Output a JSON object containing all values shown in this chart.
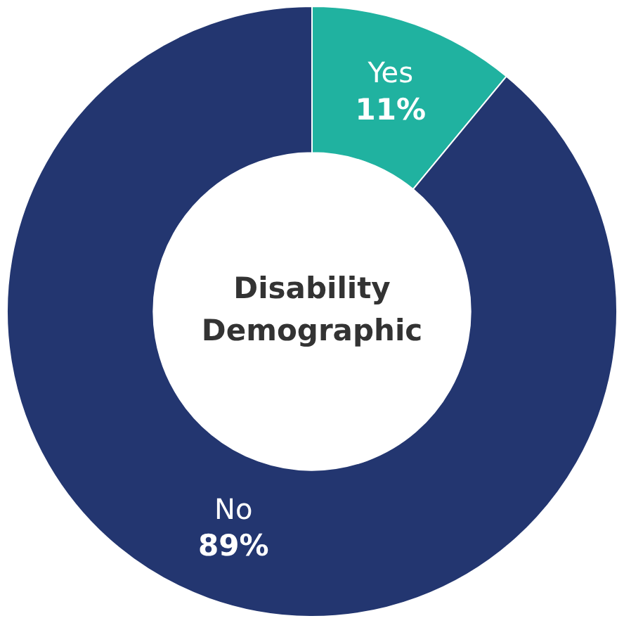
{
  "chart_data": {
    "type": "donut",
    "title": "Disability Demographic",
    "categories": [
      "Yes",
      "No"
    ],
    "values": [
      11,
      89
    ],
    "colors": [
      "#20b2a0",
      "#233670"
    ],
    "value_labels": [
      "11%",
      "89%"
    ],
    "legend": false
  }
}
